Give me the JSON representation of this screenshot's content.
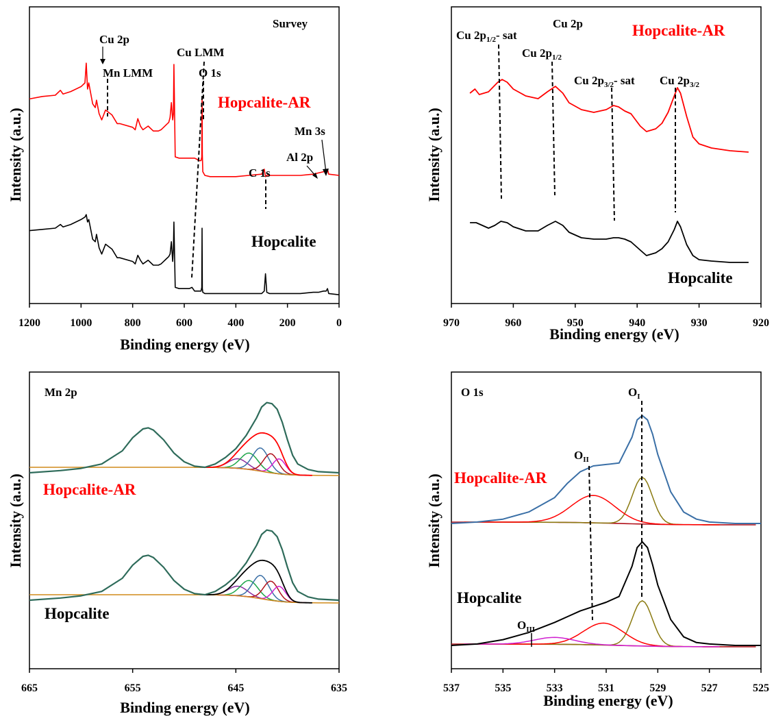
{
  "colors": {
    "red": "#ff0000",
    "black": "#000000",
    "teal": "#2e6b5a",
    "envelope": "#3a6fa6",
    "olive": "#8a7a10",
    "darkred": "#b0101a"
  },
  "chart_data": [
    {
      "type": "line",
      "panel": "survey",
      "title": "Survey",
      "xlabel": "Binding energy (eV)",
      "ylabel": "Intensity (a.u.)",
      "xlim": [
        1200,
        0
      ],
      "xticks": [
        "1200",
        "1000",
        "800",
        "600",
        "400",
        "200",
        "0"
      ],
      "series": [
        {
          "name": "Hopcalite-AR",
          "color": "#ff0000",
          "x": [
            1200,
            1150,
            1100,
            1080,
            1070,
            1040,
            1000,
            985,
            980,
            975,
            970,
            955,
            945,
            940,
            930,
            920,
            905,
            880,
            860,
            850,
            800,
            790,
            780,
            770,
            760,
            740,
            720,
            700,
            690,
            680,
            670,
            660,
            655,
            650,
            645,
            642,
            640,
            635,
            620,
            600,
            580,
            560,
            550,
            545,
            540,
            535,
            532,
            531,
            530,
            528,
            520,
            500,
            400,
            350,
            300,
            290,
            285,
            280,
            270,
            200,
            150,
            100,
            80,
            60,
            50,
            45,
            40,
            0
          ],
          "y": [
            67,
            69,
            70,
            74,
            71,
            73,
            77,
            80,
            96,
            75,
            80,
            63,
            60,
            66,
            55,
            50,
            58,
            54,
            47,
            47,
            44,
            42,
            51,
            45,
            42,
            45,
            41,
            41,
            42,
            44,
            46,
            48,
            52,
            64,
            50,
            55,
            95,
            20,
            19,
            19,
            19,
            19,
            18,
            17,
            17,
            17,
            20,
            68,
            22,
            8,
            5,
            4,
            4,
            5,
            6,
            10,
            4,
            5,
            5,
            5,
            5,
            6,
            7,
            8,
            8,
            10,
            6,
            5
          ]
        },
        {
          "name": "Hopcalite",
          "color": "#000000",
          "x": [
            1200,
            1150,
            1100,
            1080,
            1070,
            1040,
            1000,
            985,
            980,
            975,
            970,
            955,
            945,
            940,
            930,
            920,
            905,
            880,
            860,
            850,
            800,
            790,
            780,
            770,
            760,
            740,
            720,
            700,
            690,
            680,
            670,
            660,
            655,
            650,
            645,
            642,
            640,
            635,
            620,
            600,
            580,
            570,
            560,
            550,
            540,
            535,
            532,
            531,
            530,
            528,
            520,
            500,
            400,
            350,
            300,
            290,
            285,
            280,
            270,
            200,
            150,
            100,
            80,
            60,
            50,
            45,
            40,
            0
          ],
          "y": [
            53,
            54,
            55,
            58,
            56,
            58,
            62,
            64,
            66,
            60,
            62,
            46,
            44,
            50,
            39,
            34,
            42,
            38,
            31,
            31,
            28,
            26,
            33,
            29,
            26,
            29,
            25,
            25,
            26,
            28,
            30,
            32,
            34,
            44,
            28,
            38,
            60,
            7,
            6,
            6,
            6,
            7,
            4,
            4,
            4,
            4,
            7,
            55,
            6,
            3,
            2,
            2,
            2,
            2,
            2,
            4,
            18,
            3,
            2,
            2,
            2,
            3,
            3,
            4,
            4,
            6,
            2,
            1
          ]
        }
      ],
      "annotations": [
        "Cu 2p",
        "Mn LMM",
        "Cu LMM",
        "O 1s",
        "C 1s",
        "Al 2p",
        "Mn 3s"
      ]
    },
    {
      "type": "line",
      "panel": "Cu 2p",
      "title": "Cu 2p",
      "xlabel": "Binding energy (eV)",
      "ylabel": "Intensity (a.u.)",
      "xlim": [
        970,
        920
      ],
      "xticks": [
        "970",
        "960",
        "950",
        "940",
        "930",
        "920"
      ],
      "series": [
        {
          "name": "Hopcalite-AR",
          "color": "#ff0000",
          "x": [
            967,
            966.2,
            965.5,
            964,
            962.5,
            961.8,
            961,
            960,
            958,
            956,
            954.5,
            953.2,
            952,
            951,
            949,
            947,
            945,
            943.8,
            943,
            942,
            941,
            939.5,
            938.5,
            937,
            936,
            935,
            934,
            933.5,
            933,
            932,
            931,
            930,
            928,
            925,
            922
          ],
          "y": [
            62,
            65,
            61,
            63,
            70,
            72,
            70,
            65,
            60,
            58,
            63,
            67,
            62,
            55,
            50,
            48,
            50,
            53,
            52,
            49,
            47,
            38,
            34,
            36,
            40,
            48,
            60,
            66,
            62,
            45,
            30,
            25,
            22,
            20,
            19
          ]
        },
        {
          "name": "Hopcalite",
          "color": "#000000",
          "x": [
            967,
            966,
            965,
            964,
            963,
            962,
            961,
            960,
            958,
            956,
            954.5,
            953.2,
            952,
            951,
            949,
            947,
            945,
            943.8,
            943,
            942,
            941,
            939.5,
            938.5,
            937,
            936,
            935,
            934,
            933.5,
            933,
            932,
            931,
            930,
            928,
            925,
            922
          ],
          "y": [
            24,
            24,
            22,
            20,
            22,
            25,
            24,
            21,
            18,
            18,
            22,
            25,
            22,
            17,
            13,
            12,
            12,
            13,
            13,
            12,
            10,
            4,
            0,
            2,
            5,
            10,
            19,
            25,
            21,
            8,
            0,
            -3,
            -4,
            -5,
            -5
          ]
        }
      ],
      "annotations": [
        "Cu 2p1/2- sat",
        "Cu 2p1/2",
        "Cu 2p3/2- sat",
        "Cu 2p3/2"
      ],
      "reference_lines_x": [
        962,
        953.2,
        943.5,
        933.3
      ]
    },
    {
      "type": "line",
      "panel": "Mn 2p",
      "title": "Mn 2p",
      "xlabel": "Binding energy (eV)",
      "ylabel": "Intensity (a.u.)",
      "xlim": [
        665,
        635
      ],
      "xticks": [
        "665",
        "655",
        "645",
        "635"
      ],
      "series": [
        {
          "name": "Hopcalite-AR",
          "color": "#2e6b5a",
          "x": [
            665,
            662,
            660,
            658,
            656,
            655,
            654,
            653.5,
            653,
            652,
            651,
            650,
            649,
            648,
            647,
            646,
            645,
            644,
            643,
            642.5,
            642,
            641.5,
            641,
            640.5,
            640,
            639.5,
            639,
            638,
            637,
            635
          ],
          "y": [
            0,
            2,
            4,
            8,
            20,
            32,
            40,
            41,
            39,
            30,
            18,
            10,
            6,
            5,
            8,
            14,
            22,
            34,
            50,
            60,
            64,
            63,
            58,
            46,
            30,
            16,
            8,
            3,
            1,
            0
          ]
        },
        {
          "name": "Hopcalite",
          "color": "#2e6b5a",
          "x": [
            665,
            662,
            660,
            658,
            656,
            655,
            654,
            653.5,
            653,
            652,
            651,
            650,
            649,
            648,
            647,
            646,
            645,
            644,
            643,
            642.5,
            642,
            641.5,
            641,
            640.5,
            640,
            639.5,
            639,
            638,
            637,
            635
          ],
          "y": [
            0,
            2,
            4,
            8,
            20,
            32,
            40,
            41,
            39,
            30,
            18,
            10,
            6,
            5,
            8,
            14,
            22,
            34,
            50,
            60,
            64,
            63,
            58,
            46,
            30,
            16,
            8,
            3,
            1,
            0
          ]
        }
      ]
    },
    {
      "type": "line",
      "panel": "O 1s",
      "title": "O 1s",
      "xlabel": "Binding energy (eV)",
      "ylabel": "Intensity (a.u.)",
      "xlim": [
        537,
        525
      ],
      "xticks": [
        "537",
        "535",
        "533",
        "531",
        "529",
        "527",
        "525"
      ],
      "series": [
        {
          "name": "Hopcalite-AR",
          "color": "#3a6fa6",
          "x": [
            537,
            536,
            535,
            534,
            533,
            532.5,
            532,
            531.5,
            531,
            530.5,
            530,
            529.8,
            529.6,
            529.4,
            529.2,
            529,
            528.5,
            528,
            527.5,
            527,
            526,
            525
          ],
          "y": [
            0,
            1,
            3,
            8,
            18,
            28,
            36,
            40,
            41,
            42,
            60,
            72,
            75,
            72,
            62,
            48,
            22,
            8,
            3,
            1,
            0,
            0
          ]
        },
        {
          "name": "Hopcalite",
          "color": "#000000",
          "x": [
            537,
            536,
            535,
            534,
            533,
            532.5,
            532,
            531.5,
            531,
            530.5,
            530,
            529.8,
            529.6,
            529.4,
            529.2,
            529,
            528.5,
            528,
            527.5,
            527,
            526,
            525
          ],
          "y": [
            0,
            1,
            4,
            9,
            16,
            20,
            24,
            27,
            30,
            34,
            55,
            68,
            72,
            68,
            56,
            42,
            18,
            6,
            2,
            1,
            0,
            0
          ]
        }
      ],
      "annotations": [
        "OI",
        "OII",
        "OIII"
      ]
    }
  ],
  "labels": {
    "survey": "Survey",
    "cu2p": "Cu 2p",
    "mn2p": "Mn 2p",
    "o1s": "O 1s",
    "hopcalite_ar": "Hopcalite-AR",
    "hopcalite": "Hopcalite",
    "xlabel": "Binding energy (eV)",
    "ylabel": "Intensity (a.u.)",
    "cu2p_ann": "Cu 2p",
    "mnlmm": "Mn LMM",
    "culmm": "Cu LMM",
    "o1s_ann": "O 1s",
    "c1s": "C 1s",
    "al2p": "Al 2p",
    "mn3s": "Mn 3s",
    "cu_p12sat": "Cu 2p",
    "cu_p12sat_sub": "1/2",
    "cu_p12sat_tail": "- sat",
    "cu_p12": "Cu 2p",
    "cu_p12_sub": "1/2",
    "cu_p32sat": "Cu 2p",
    "cu_p32sat_sub": "3/2",
    "cu_p32sat_tail": "- sat",
    "cu_p32": "Cu 2p",
    "cu_p32_sub": "3/2",
    "oi": "O",
    "oi_sub": "I",
    "oii": "O",
    "oii_sub": "II",
    "oiii": "O",
    "oiii_sub": "III"
  }
}
